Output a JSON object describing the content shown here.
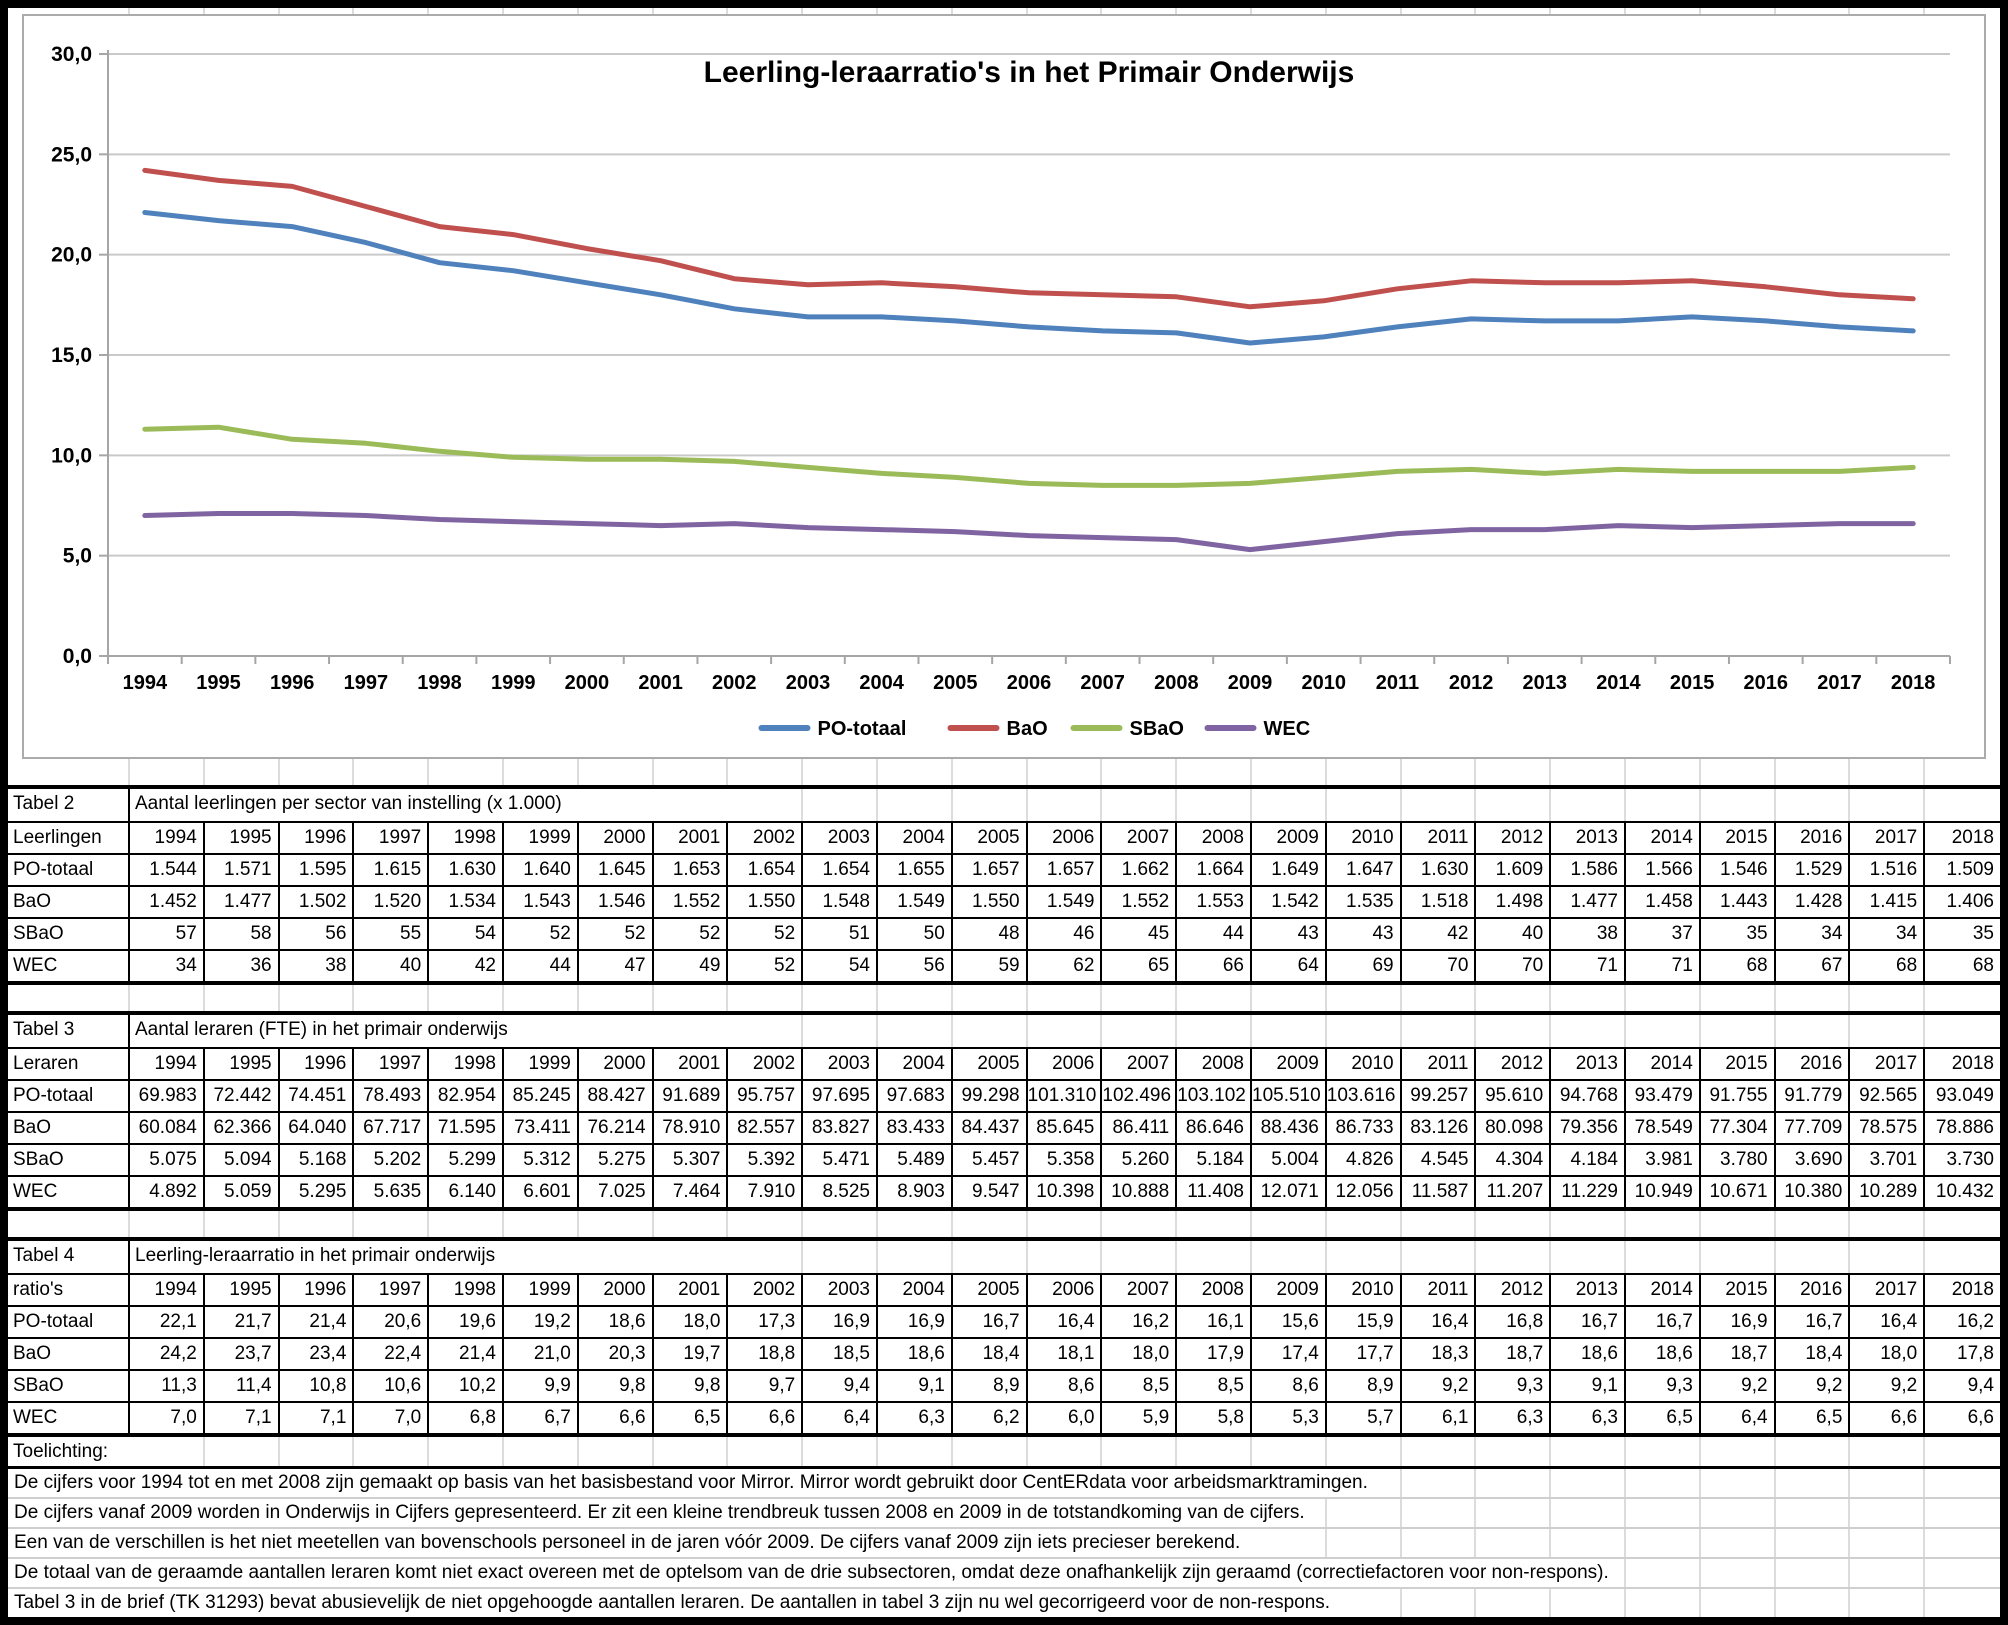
{
  "chart": {
    "title": "Leerling-leraarratio's in het Primair Onderwijs",
    "y_tick_labels": [
      "0,0",
      "5,0",
      "10,0",
      "15,0",
      "20,0",
      "25,0",
      "30,0"
    ],
    "legend_labels": [
      "PO-totaal",
      "BaO",
      "SBaO",
      "WEC"
    ]
  },
  "chart_data": {
    "type": "line",
    "title": "Leerling-leraarratio's in het Primair Onderwijs",
    "x": [
      1994,
      1995,
      1996,
      1997,
      1998,
      1999,
      2000,
      2001,
      2002,
      2003,
      2004,
      2005,
      2006,
      2007,
      2008,
      2009,
      2010,
      2011,
      2012,
      2013,
      2014,
      2015,
      2016,
      2017,
      2018
    ],
    "series": [
      {
        "name": "PO-totaal",
        "color": "#4F81BD",
        "values": [
          22.1,
          21.7,
          21.4,
          20.6,
          19.6,
          19.2,
          18.6,
          18.0,
          17.3,
          16.9,
          16.9,
          16.7,
          16.4,
          16.2,
          16.1,
          15.6,
          15.9,
          16.4,
          16.8,
          16.7,
          16.7,
          16.9,
          16.7,
          16.4,
          16.2
        ]
      },
      {
        "name": "BaO",
        "color": "#C0504D",
        "values": [
          24.2,
          23.7,
          23.4,
          22.4,
          21.4,
          21.0,
          20.3,
          19.7,
          18.8,
          18.5,
          18.6,
          18.4,
          18.1,
          18.0,
          17.9,
          17.4,
          17.7,
          18.3,
          18.7,
          18.6,
          18.6,
          18.7,
          18.4,
          18.0,
          17.8
        ]
      },
      {
        "name": "SBaO",
        "color": "#9BBB59",
        "values": [
          11.3,
          11.4,
          10.8,
          10.6,
          10.2,
          9.9,
          9.8,
          9.8,
          9.7,
          9.4,
          9.1,
          8.9,
          8.6,
          8.5,
          8.5,
          8.6,
          8.9,
          9.2,
          9.3,
          9.1,
          9.3,
          9.2,
          9.2,
          9.2,
          9.4
        ]
      },
      {
        "name": "WEC",
        "color": "#8064A2",
        "values": [
          7.0,
          7.1,
          7.1,
          7.0,
          6.8,
          6.7,
          6.6,
          6.5,
          6.6,
          6.4,
          6.3,
          6.2,
          6.0,
          5.9,
          5.8,
          5.3,
          5.7,
          6.1,
          6.3,
          6.3,
          6.5,
          6.4,
          6.5,
          6.6,
          6.6
        ]
      }
    ],
    "ylim": [
      0,
      30
    ],
    "ytick_step": 5,
    "grid": true,
    "legend_position": "bottom",
    "gridline_color": "#c9c9c9",
    "axis_color": "#a6a6a6"
  },
  "tables": [
    {
      "label": "Tabel 2",
      "title": "Aantal leerlingen per sector van instelling (x 1.000)",
      "row_header": "Leerlingen",
      "years": [
        "1994",
        "1995",
        "1996",
        "1997",
        "1998",
        "1999",
        "2000",
        "2001",
        "2002",
        "2003",
        "2004",
        "2005",
        "2006",
        "2007",
        "2008",
        "2009",
        "2010",
        "2011",
        "2012",
        "2013",
        "2014",
        "2015",
        "2016",
        "2017",
        "2018"
      ],
      "rows": [
        {
          "label": "PO-totaal",
          "values": [
            "1.544",
            "1.571",
            "1.595",
            "1.615",
            "1.630",
            "1.640",
            "1.645",
            "1.653",
            "1.654",
            "1.654",
            "1.655",
            "1.657",
            "1.657",
            "1.662",
            "1.664",
            "1.649",
            "1.647",
            "1.630",
            "1.609",
            "1.586",
            "1.566",
            "1.546",
            "1.529",
            "1.516",
            "1.509"
          ]
        },
        {
          "label": "BaO",
          "values": [
            "1.452",
            "1.477",
            "1.502",
            "1.520",
            "1.534",
            "1.543",
            "1.546",
            "1.552",
            "1.550",
            "1.548",
            "1.549",
            "1.550",
            "1.549",
            "1.552",
            "1.553",
            "1.542",
            "1.535",
            "1.518",
            "1.498",
            "1.477",
            "1.458",
            "1.443",
            "1.428",
            "1.415",
            "1.406"
          ]
        },
        {
          "label": "SBaO",
          "values": [
            "57",
            "58",
            "56",
            "55",
            "54",
            "52",
            "52",
            "52",
            "52",
            "51",
            "50",
            "48",
            "46",
            "45",
            "44",
            "43",
            "43",
            "42",
            "40",
            "38",
            "37",
            "35",
            "34",
            "34",
            "35"
          ]
        },
        {
          "label": "WEC",
          "values": [
            "34",
            "36",
            "38",
            "40",
            "42",
            "44",
            "47",
            "49",
            "52",
            "54",
            "56",
            "59",
            "62",
            "65",
            "66",
            "64",
            "69",
            "70",
            "70",
            "71",
            "71",
            "68",
            "67",
            "68",
            "68"
          ]
        }
      ]
    },
    {
      "label": "Tabel 3",
      "title": "Aantal leraren (FTE) in het primair onderwijs",
      "row_header": "Leraren",
      "years": [
        "1994",
        "1995",
        "1996",
        "1997",
        "1998",
        "1999",
        "2000",
        "2001",
        "2002",
        "2003",
        "2004",
        "2005",
        "2006",
        "2007",
        "2008",
        "2009",
        "2010",
        "2011",
        "2012",
        "2013",
        "2014",
        "2015",
        "2016",
        "2017",
        "2018"
      ],
      "rows": [
        {
          "label": "PO-totaal",
          "values": [
            "69.983",
            "72.442",
            "74.451",
            "78.493",
            "82.954",
            "85.245",
            "88.427",
            "91.689",
            "95.757",
            "97.695",
            "97.683",
            "99.298",
            "101.310",
            "102.496",
            "103.102",
            "105.510",
            "103.616",
            "99.257",
            "95.610",
            "94.768",
            "93.479",
            "91.755",
            "91.779",
            "92.565",
            "93.049"
          ]
        },
        {
          "label": "BaO",
          "values": [
            "60.084",
            "62.366",
            "64.040",
            "67.717",
            "71.595",
            "73.411",
            "76.214",
            "78.910",
            "82.557",
            "83.827",
            "83.433",
            "84.437",
            "85.645",
            "86.411",
            "86.646",
            "88.436",
            "86.733",
            "83.126",
            "80.098",
            "79.356",
            "78.549",
            "77.304",
            "77.709",
            "78.575",
            "78.886"
          ]
        },
        {
          "label": "SBaO",
          "values": [
            "5.075",
            "5.094",
            "5.168",
            "5.202",
            "5.299",
            "5.312",
            "5.275",
            "5.307",
            "5.392",
            "5.471",
            "5.489",
            "5.457",
            "5.358",
            "5.260",
            "5.184",
            "5.004",
            "4.826",
            "4.545",
            "4.304",
            "4.184",
            "3.981",
            "3.780",
            "3.690",
            "3.701",
            "3.730"
          ]
        },
        {
          "label": "WEC",
          "values": [
            "4.892",
            "5.059",
            "5.295",
            "5.635",
            "6.140",
            "6.601",
            "7.025",
            "7.464",
            "7.910",
            "8.525",
            "8.903",
            "9.547",
            "10.398",
            "10.888",
            "11.408",
            "12.071",
            "12.056",
            "11.587",
            "11.207",
            "11.229",
            "10.949",
            "10.671",
            "10.380",
            "10.289",
            "10.432"
          ]
        }
      ]
    },
    {
      "label": "Tabel 4",
      "title": "Leerling-leraarratio in het primair onderwijs",
      "row_header": "ratio's",
      "years": [
        "1994",
        "1995",
        "1996",
        "1997",
        "1998",
        "1999",
        "2000",
        "2001",
        "2002",
        "2003",
        "2004",
        "2005",
        "2006",
        "2007",
        "2008",
        "2009",
        "2010",
        "2011",
        "2012",
        "2013",
        "2014",
        "2015",
        "2016",
        "2017",
        "2018"
      ],
      "rows": [
        {
          "label": "PO-totaal",
          "values": [
            "22,1",
            "21,7",
            "21,4",
            "20,6",
            "19,6",
            "19,2",
            "18,6",
            "18,0",
            "17,3",
            "16,9",
            "16,9",
            "16,7",
            "16,4",
            "16,2",
            "16,1",
            "15,6",
            "15,9",
            "16,4",
            "16,8",
            "16,7",
            "16,7",
            "16,9",
            "16,7",
            "16,4",
            "16,2"
          ]
        },
        {
          "label": "BaO",
          "values": [
            "24,2",
            "23,7",
            "23,4",
            "22,4",
            "21,4",
            "21,0",
            "20,3",
            "19,7",
            "18,8",
            "18,5",
            "18,6",
            "18,4",
            "18,1",
            "18,0",
            "17,9",
            "17,4",
            "17,7",
            "18,3",
            "18,7",
            "18,6",
            "18,6",
            "18,7",
            "18,4",
            "18,0",
            "17,8"
          ]
        },
        {
          "label": "SBaO",
          "values": [
            "11,3",
            "11,4",
            "10,8",
            "10,6",
            "10,2",
            "9,9",
            "9,8",
            "9,8",
            "9,7",
            "9,4",
            "9,1",
            "8,9",
            "8,6",
            "8,5",
            "8,5",
            "8,6",
            "8,9",
            "9,2",
            "9,3",
            "9,1",
            "9,3",
            "9,2",
            "9,2",
            "9,2",
            "9,4"
          ]
        },
        {
          "label": "WEC",
          "values": [
            "7,0",
            "7,1",
            "7,1",
            "7,0",
            "6,8",
            "6,7",
            "6,6",
            "6,5",
            "6,6",
            "6,4",
            "6,3",
            "6,2",
            "6,0",
            "5,9",
            "5,8",
            "5,3",
            "5,7",
            "6,1",
            "6,3",
            "6,3",
            "6,5",
            "6,4",
            "6,5",
            "6,6",
            "6,6"
          ]
        }
      ]
    }
  ],
  "notes": {
    "label": "Toelichting:",
    "lines": [
      "De cijfers voor 1994 tot en met 2008 zijn gemaakt op basis van het basisbestand voor Mirror. Mirror wordt gebruikt door CentERdata voor arbeidsmarktramingen.",
      "De cijfers vanaf 2009 worden in Onderwijs in Cijfers gepresenteerd. Er zit een kleine trendbreuk tussen 2008 en 2009 in de totstandkoming van de cijfers.",
      "Een van de verschillen is het niet meetellen van bovenschools personeel in de jaren vóór 2009. De cijfers vanaf 2009 zijn iets precieser berekend.",
      "De totaal van de geraamde aantallen leraren komt niet exact overeen met de optelsom van de drie subsectoren, omdat deze onafhankelijk zijn geraamd (correctiefactoren voor non-respons).",
      "Tabel 3 in de brief (TK 31293) bevat abusievelijk de niet opgehoogde aantallen leraren. De aantallen in tabel 3 zijn nu wel gecorrigeerd voor de non-respons."
    ]
  }
}
